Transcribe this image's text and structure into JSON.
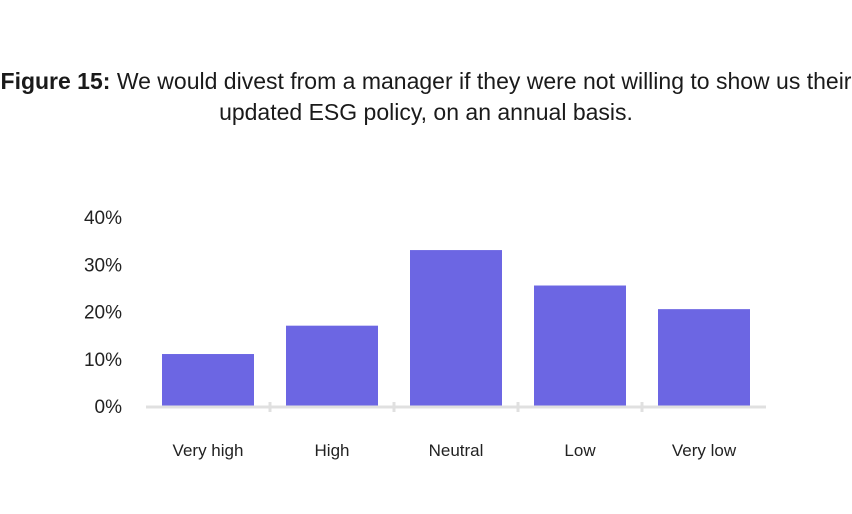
{
  "chart_data": {
    "type": "bar",
    "title_prefix": "Figure 15:",
    "title": "We would divest from a manager if they were not willing to show us their updated ESG policy, on an annual basis.",
    "categories": [
      "Very high",
      "High",
      "Neutral",
      "Low",
      "Very low"
    ],
    "values": [
      11,
      17,
      33,
      25.5,
      20.5
    ],
    "ylim": [
      0,
      40
    ],
    "yticks": [
      "0%",
      "10%",
      "20%",
      "30%",
      "40%"
    ],
    "xlabel": "",
    "ylabel": "",
    "grid": false,
    "bar_color": "#6c66e3",
    "axis_color": "#e0e0e0"
  }
}
